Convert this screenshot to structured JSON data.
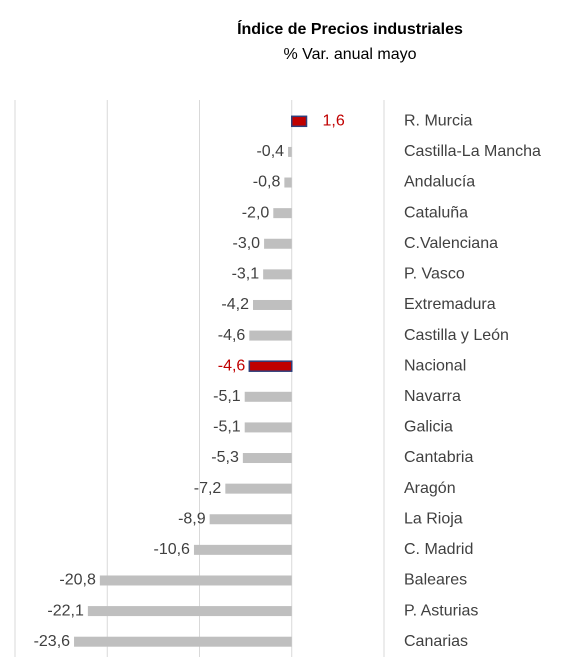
{
  "chart_data": {
    "type": "hbar",
    "title": "Índice de Precios industriales",
    "subtitle": "% Var. anual mayo",
    "categories": [
      "R. Murcia",
      "Castilla-La Mancha",
      "Andalucía",
      "Cataluña",
      "C.Valenciana",
      "P. Vasco",
      "Extremadura",
      "Castilla y León",
      "Nacional",
      "Navarra",
      "Galicia",
      "Cantabria",
      "Aragón",
      "La Rioja",
      "C. Madrid",
      "Baleares",
      "P. Asturias",
      "Canarias"
    ],
    "values": [
      1.6,
      -0.4,
      -0.8,
      -2.0,
      -3.0,
      -3.1,
      -4.2,
      -4.6,
      -4.6,
      -5.1,
      -5.1,
      -5.3,
      -7.2,
      -8.9,
      -10.6,
      -20.8,
      -22.1,
      -23.6
    ],
    "value_labels": [
      "1,6",
      "-0,4",
      "-0,8",
      "-2,0",
      "-3,0",
      "-3,1",
      "-4,2",
      "-4,6",
      "-4,6",
      "-5,1",
      "-5,1",
      "-5,3",
      "-7,2",
      "-8,9",
      "-10,6",
      "-20,8",
      "-22,1",
      "-23,6"
    ],
    "colors": [
      "#c00000",
      "#bfbfbf",
      "#bfbfbf",
      "#bfbfbf",
      "#bfbfbf",
      "#bfbfbf",
      "#bfbfbf",
      "#bfbfbf",
      "#c00000",
      "#bfbfbf",
      "#bfbfbf",
      "#bfbfbf",
      "#bfbfbf",
      "#bfbfbf",
      "#bfbfbf",
      "#bfbfbf",
      "#bfbfbf",
      "#bfbfbf"
    ],
    "highlight_color": "#c00000",
    "xlim": [
      -30,
      10
    ],
    "xticks": [
      -30,
      -20,
      -10,
      0,
      10
    ],
    "grid": true
  }
}
